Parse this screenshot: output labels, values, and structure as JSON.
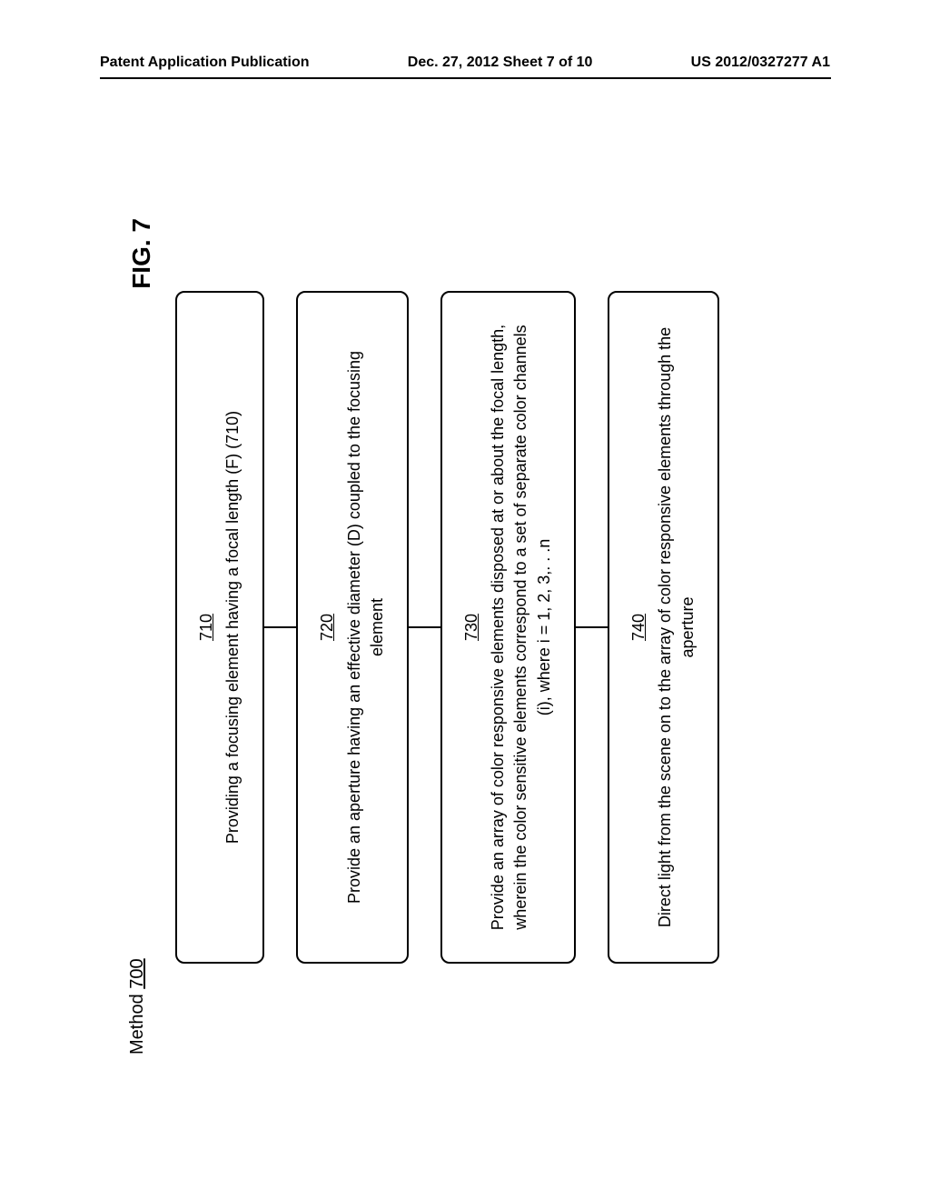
{
  "header": {
    "left": "Patent Application Publication",
    "center": "Dec. 27, 2012  Sheet 7 of 10",
    "right": "US 2012/0327277 A1"
  },
  "method": {
    "label_prefix": "Method ",
    "label_num": "700"
  },
  "figure_label": "FIG. 7",
  "boxes": [
    {
      "ref": "710",
      "text": "Providing a focusing element having a focal length (F) (710)"
    },
    {
      "ref": "720",
      "text": "Provide an aperture having an effective diameter (D) coupled to the focusing element"
    },
    {
      "ref": "730",
      "text": "Provide an array of color responsive elements disposed at or about the focal length, wherein the color sensitive elements correspond to a set of separate color channels (i), where i = 1, 2, 3,. . .n"
    },
    {
      "ref": "740",
      "text": "Direct light from the scene on to the array of color responsive elements through the aperture"
    }
  ],
  "colors": {
    "background": "#ffffff",
    "border": "#000000",
    "text": "#000000"
  },
  "layout": {
    "box_border_radius": 10,
    "box_border_width": 2,
    "connector_height": 35,
    "rotation_deg": -90
  }
}
